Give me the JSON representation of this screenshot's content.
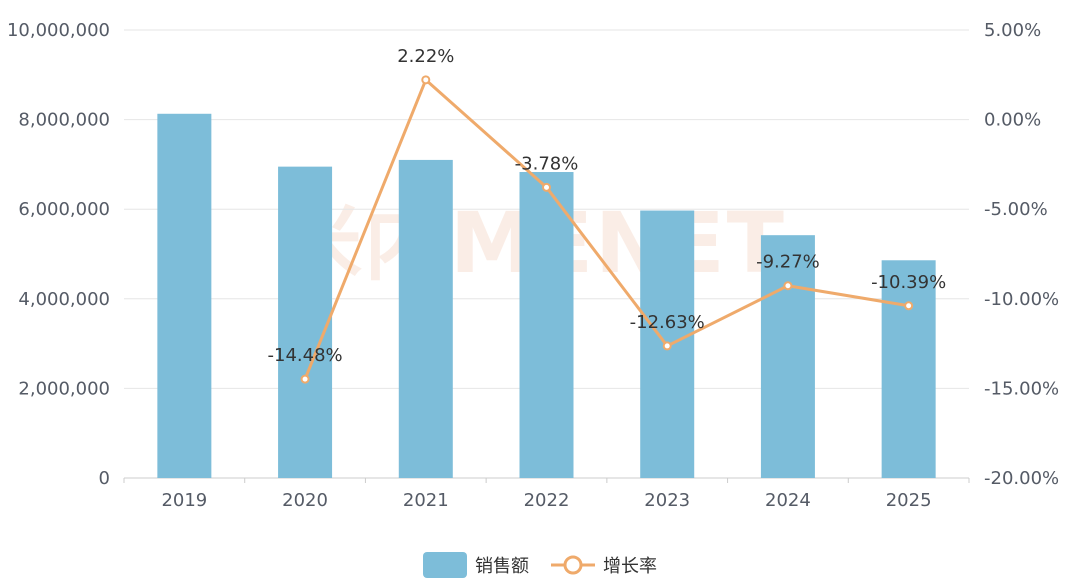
{
  "chart_data": {
    "type": "bar",
    "categories": [
      "2019",
      "2020",
      "2021",
      "2022",
      "2023",
      "2024",
      "2025"
    ],
    "series": [
      {
        "name": "销售额",
        "type": "bar",
        "axis": "left",
        "color": "#7dbdd9",
        "values": [
          8130000,
          6950000,
          7100000,
          6830000,
          5970000,
          5420000,
          4860000
        ]
      },
      {
        "name": "增长率",
        "type": "line",
        "axis": "right",
        "color": "#efaa6b",
        "values": [
          null,
          -14.48,
          2.22,
          -3.78,
          -12.63,
          -9.27,
          -10.39
        ],
        "labels": [
          "",
          "-14.48%",
          "2.22%",
          "-3.78%",
          "-12.63%",
          "-9.27%",
          "-10.39%"
        ]
      }
    ],
    "y_left": {
      "ylim": [
        0,
        10000000
      ],
      "ticks": [
        0,
        2000000,
        4000000,
        6000000,
        8000000,
        10000000
      ],
      "tick_labels": [
        "0",
        "2,000,000",
        "4,000,000",
        "6,000,000",
        "8,000,000",
        "10,000,000"
      ]
    },
    "y_right": {
      "ylim": [
        -20,
        5
      ],
      "ticks": [
        -20,
        -15,
        -10,
        -5,
        0,
        5
      ],
      "tick_labels": [
        "-20.00%",
        "-15.00%",
        "-10.00%",
        "-5.00%",
        "0.00%",
        "5.00%"
      ]
    },
    "grid": true,
    "legend": "bottom-center"
  },
  "watermark": "米内MENET",
  "colors": {
    "bar": "#7dbdd9",
    "line": "#efaa6b",
    "grid": "#e6e6e6",
    "axis": "#cccccc",
    "tick_text": "#555b66",
    "label_text": "#333333"
  }
}
